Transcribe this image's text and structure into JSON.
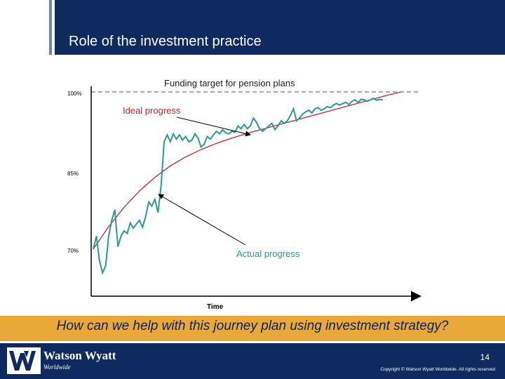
{
  "slide": {
    "title": "Role of the investment practice",
    "question": "How can we help with this journey plan using investment strategy?",
    "page_number": "14",
    "copyright": "Copyright © Watson Wyatt Worldwide. All rights reserved"
  },
  "logo": {
    "name": "Watson Wyatt",
    "sub": "Worldwide",
    "icon": "watson-wyatt-w-logo-icon"
  },
  "colors": {
    "header": "#0f2a5e",
    "banner": "#e8a93a",
    "ideal": "#c0282d",
    "actual": "#2a9a96",
    "question_text": "#0d2260"
  },
  "chart_data": {
    "type": "line",
    "xlabel": "Time",
    "ylabel": "",
    "yticks": [
      {
        "value": 100,
        "label": "100%"
      },
      {
        "value": 85,
        "label": "85%"
      },
      {
        "value": 70,
        "label": "70%"
      }
    ],
    "ylim": [
      64,
      103
    ],
    "xlim": [
      0,
      100
    ],
    "target": {
      "value": 100,
      "label": "Funding target for pension plans"
    },
    "annotations": {
      "ideal_label": "Ideal progress",
      "actual_label": "Actual progress"
    },
    "series": [
      {
        "name": "Ideal progress",
        "x": [
          0,
          5,
          10,
          15,
          20,
          25,
          30,
          35,
          40,
          45,
          50,
          55,
          60,
          65,
          70,
          75,
          80,
          85,
          90,
          95,
          100
        ],
        "values": [
          70.0,
          74.3,
          78.0,
          81.1,
          83.7,
          85.9,
          87.6,
          89.0,
          90.2,
          91.2,
          92.1,
          92.9,
          93.7,
          94.5,
          95.3,
          96.1,
          96.9,
          97.7,
          98.5,
          99.3,
          100.0
        ]
      },
      {
        "name": "Actual progress",
        "x": [
          0,
          1,
          2,
          3,
          4,
          5,
          6,
          7,
          8,
          9,
          10,
          11,
          12,
          13,
          14,
          15,
          16,
          17,
          18,
          19,
          20,
          21,
          22,
          23,
          24,
          25,
          26,
          27,
          28,
          29,
          30,
          31,
          32,
          33,
          34,
          35,
          36,
          37,
          38,
          39,
          40,
          41,
          42,
          43,
          44,
          45,
          46,
          47,
          48,
          49,
          50,
          51,
          52,
          53,
          54,
          55,
          56,
          57,
          58,
          59,
          60,
          61,
          62,
          63,
          64,
          65,
          66,
          67,
          68,
          69,
          70,
          71,
          72,
          73,
          74,
          75,
          76,
          77,
          78,
          79,
          80,
          81,
          82,
          83,
          84,
          85,
          86,
          87,
          88,
          89,
          90,
          91,
          92,
          93,
          94
        ],
        "values": [
          70.0,
          72.5,
          67.8,
          65.5,
          66.8,
          72.5,
          75.5,
          77.5,
          70.5,
          72.5,
          73.5,
          73.0,
          75.0,
          74.0,
          74.8,
          75.5,
          74.2,
          76.2,
          79.0,
          78.2,
          79.5,
          77.0,
          82.0,
          90.5,
          91.8,
          90.5,
          92.0,
          91.0,
          91.8,
          90.8,
          91.5,
          90.5,
          90.8,
          92.0,
          91.2,
          89.5,
          90.0,
          91.5,
          91.0,
          91.8,
          92.5,
          92.0,
          92.8,
          92.2,
          92.0,
          92.5,
          92.3,
          93.5,
          93.0,
          93.8,
          93.0,
          93.5,
          95.0,
          94.2,
          93.0,
          92.5,
          93.0,
          93.5,
          94.0,
          92.8,
          93.5,
          94.5,
          94.0,
          94.5,
          95.5,
          96.8,
          94.5,
          95.0,
          95.8,
          96.2,
          96.5,
          96.0,
          96.8,
          97.0,
          96.5,
          96.8,
          97.2,
          97.0,
          97.5,
          97.8,
          97.5,
          97.8,
          98.0,
          97.6,
          98.2,
          98.5,
          98.0,
          98.6,
          98.5,
          98.2,
          98.5,
          98.8,
          98.4,
          98.6,
          98.5
        ]
      }
    ]
  }
}
